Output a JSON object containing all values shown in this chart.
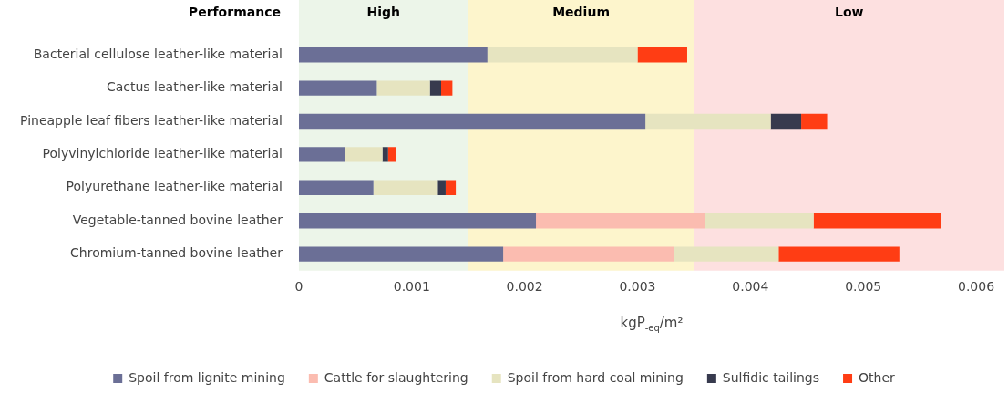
{
  "chart_data": {
    "type": "bar",
    "orientation": "horizontal",
    "stacked": true,
    "categories": [
      "Bacterial cellulose leather-like material",
      "Cactus leather-like material",
      "Pineapple leaf fibers leather-like material",
      "Polyvinylchloride leather-like material",
      "Polyurethane leather-like material",
      "Vegetable-tanned bovine leather",
      "Chromium-tanned bovine leather"
    ],
    "series": [
      {
        "name": "Spoil from lignite mining",
        "color": "#6b6f96",
        "values": [
          0.00167,
          0.00069,
          0.00307,
          0.00041,
          0.00066,
          0.0021,
          0.00181
        ]
      },
      {
        "name": "Cattle for slaughtering",
        "color": "#fbbcb0",
        "values": [
          null,
          null,
          null,
          null,
          null,
          0.0015,
          0.00151
        ]
      },
      {
        "name": "Spoil from hard coal mining",
        "color": "#e6e4c0",
        "values": [
          0.00133,
          0.00047,
          0.00111,
          0.00033,
          0.00057,
          0.00096,
          0.00093
        ]
      },
      {
        "name": "Sulfidic tailings",
        "color": "#373a4e",
        "values": [
          null,
          0.0001,
          0.00027,
          5e-05,
          7e-05,
          null,
          null
        ]
      },
      {
        "name": "Other",
        "color": "#ff3d14",
        "values": [
          0.00044,
          0.0001,
          0.00023,
          7e-05,
          9e-05,
          0.00113,
          0.00107
        ]
      }
    ],
    "xlim": [
      0,
      0.00625
    ],
    "xticks": [
      0,
      0.001,
      0.002,
      0.003,
      0.004,
      0.005,
      0.006
    ],
    "xlabel": "kgP$_{-eq}$/m²",
    "bands": [
      {
        "axis": "x",
        "from": 0,
        "to": 0.0015,
        "label": "High",
        "color": "#ecf5e9"
      },
      {
        "axis": "x",
        "from": 0.0015,
        "to": 0.0035,
        "label": "Medium",
        "color": "#fdf5cc"
      },
      {
        "axis": "x",
        "from": 0.0035,
        "to": 0.00625,
        "label": "Low",
        "color": "#fde0e0"
      }
    ],
    "annotations": [
      "Performance"
    ],
    "grid": false,
    "legend": "bottom"
  }
}
